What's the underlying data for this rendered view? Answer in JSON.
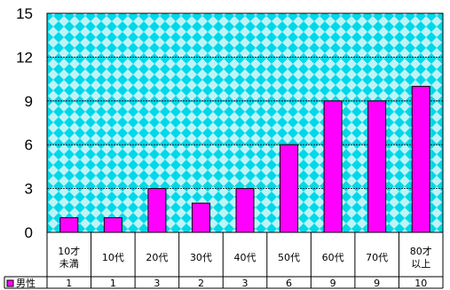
{
  "chart_data": {
    "type": "bar",
    "categories": [
      "10才\n未満",
      "10代",
      "20代",
      "30代",
      "40代",
      "50代",
      "60代",
      "70代",
      "80才\n以上"
    ],
    "series": [
      {
        "name": "男性",
        "values": [
          1,
          1,
          3,
          2,
          3,
          6,
          9,
          9,
          10
        ]
      }
    ],
    "ylim": [
      0,
      15
    ],
    "yticks": [
      0,
      3,
      6,
      9,
      12,
      15
    ],
    "grid": true,
    "data_table": true,
    "colors": {
      "bar": "#ff00ff",
      "plot_bg": "#9fe7ee",
      "plot_pattern": "#00d8e8",
      "gridline": "#000000"
    }
  }
}
